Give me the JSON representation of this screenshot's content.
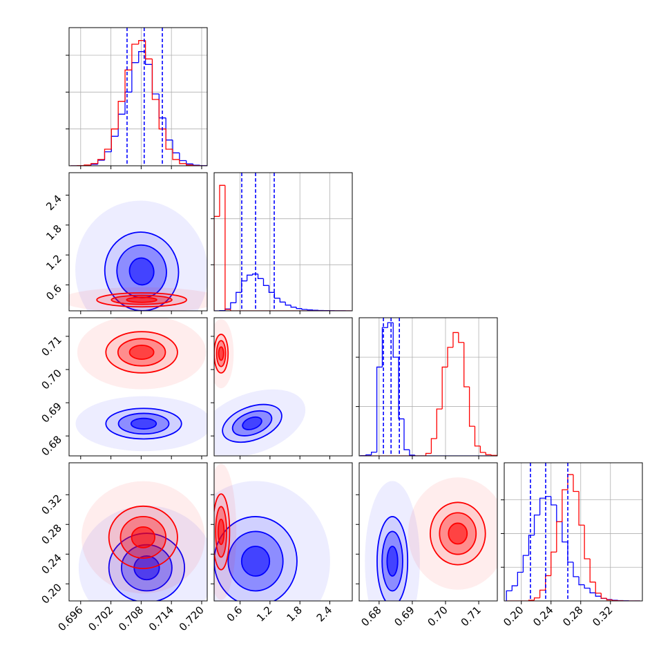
{
  "chart_data": {
    "type": "corner",
    "params": [
      {
        "lim": [
          0.6937,
          0.7211
        ],
        "ticks": [
          0.696,
          0.702,
          0.708,
          0.714,
          {
            "value": 0.72,
            "label": "0.720"
          }
        ]
      },
      {
        "lim": [
          0.08,
          2.85
        ],
        "ticks": [
          0.6,
          1.2,
          1.8,
          2.4
        ]
      },
      {
        "lim": [
          0.674,
          0.7156
        ],
        "ticks": [
          0.68,
          0.69,
          {
            "value": 0.7,
            "label": "0.70"
          },
          0.71
        ]
      },
      {
        "lim": [
          0.177,
          0.363
        ],
        "ticks": [
          {
            "value": 0.2,
            "label": "0.20"
          },
          0.24,
          0.28,
          0.32
        ]
      }
    ],
    "histograms": [
      {
        "bins": [
          0.694,
          0.69535,
          0.6967,
          0.69805,
          0.6994,
          0.70075,
          0.7021,
          0.70345,
          0.7048,
          0.70615,
          0.7075,
          0.70885,
          0.7102,
          0.71155,
          0.7129,
          0.71425,
          0.7156,
          0.71695,
          0.7183,
          0.71965,
          0.721
        ],
        "ylim": [
          0,
          3750
        ],
        "yticks": [
          1000,
          2000,
          3000
        ],
        "grid": true,
        "series": [
          {
            "color": "#0000ff",
            "values": [
              0,
              0,
              10,
              40,
              150,
              380,
              800,
              1400,
              2000,
              2800,
              3100,
              2750,
              1950,
              1300,
              700,
              350,
              140,
              50,
              15,
              5
            ]
          },
          {
            "color": "#ff0000",
            "values": [
              0,
              5,
              20,
              60,
              170,
              450,
              1000,
              1750,
              2600,
              3300,
              3400,
              2900,
              1800,
              1000,
              450,
              170,
              60,
              20,
              5,
              0
            ]
          }
        ],
        "quantiles": [
          0.7052,
          0.7086,
          0.7122
        ],
        "quantile_color": "#0000ff"
      },
      {
        "bins": [
          0.08,
          0.19,
          0.3,
          0.41,
          0.52,
          0.63,
          0.74,
          0.85,
          0.96,
          1.07,
          1.18,
          1.29,
          1.4,
          1.51,
          1.62,
          1.73,
          1.84,
          1.95,
          2.06,
          2.17,
          2.28,
          2.39,
          2.5,
          2.61,
          2.72,
          2.83
        ],
        "ylim": [
          0,
          6000
        ],
        "yticks": [
          2000,
          4000
        ],
        "grid": true,
        "series": [
          {
            "color": "#0000ff",
            "values": [
              0,
              10,
              80,
              350,
              800,
              1300,
              1550,
              1600,
              1400,
              1100,
              800,
              550,
              380,
              250,
              160,
              100,
              60,
              40,
              25,
              15,
              10,
              5,
              3,
              2,
              0
            ]
          },
          {
            "color": "#ff0000",
            "values": [
              4100,
              5450,
              60,
              0,
              0,
              0,
              0,
              0,
              0,
              0,
              0,
              0,
              0,
              0,
              0,
              0,
              0,
              0,
              0,
              0,
              0,
              0,
              0,
              0,
              0
            ]
          }
        ],
        "quantiles": [
          0.634,
          0.911,
          1.285
        ],
        "quantile_color": "#0000ff"
      },
      {
        "bins": [
          0.6744,
          0.67604,
          0.67768,
          0.67932,
          0.68096,
          0.6826,
          0.68424,
          0.68588,
          0.68752,
          0.68916,
          0.6908,
          0.69244,
          0.69408,
          0.69572,
          0.69736,
          0.699,
          0.70064,
          0.70228,
          0.70392,
          0.70556,
          0.7072,
          0.70884,
          0.71048,
          0.71212,
          0.71376,
          0.7154
        ],
        "ylim": [
          0,
          5600
        ],
        "yticks": [
          2000,
          4000
        ],
        "grid": true,
        "series": [
          {
            "color": "#0000ff",
            "values": [
              10,
              40,
              150,
              3600,
              5200,
              5400,
              4000,
              1500,
              250,
              30,
              0,
              0,
              0,
              0,
              0,
              0,
              0,
              0,
              0,
              0,
              0,
              0,
              0,
              0,
              0
            ]
          },
          {
            "color": "#ff0000",
            "values": [
              0,
              0,
              0,
              0,
              0,
              0,
              0,
              0,
              0,
              0,
              0,
              0,
              100,
              700,
              1900,
              3600,
              4400,
              5000,
              4600,
              2800,
              1200,
              400,
              140,
              50,
              20
            ]
          }
        ],
        "quantiles": [
          0.6813,
          0.6836,
          0.6861
        ],
        "quantile_color": "#0000ff"
      },
      {
        "bins": [
          0.18,
          0.1875,
          0.195,
          0.2025,
          0.21,
          0.2175,
          0.225,
          0.2325,
          0.24,
          0.2475,
          0.255,
          0.2625,
          0.27,
          0.2775,
          0.285,
          0.2925,
          0.3,
          0.3075,
          0.315,
          0.3225,
          0.33,
          0.3375,
          0.345,
          0.3525,
          0.36
        ],
        "ylim": [
          0,
          4100
        ],
        "yticks": [
          1000,
          2000,
          3000
        ],
        "grid": true,
        "series": [
          {
            "color": "#0000ff",
            "values": [
              300,
              450,
              850,
              1350,
              1950,
              2550,
              3050,
              3100,
              2850,
              2350,
              1750,
              1150,
              720,
              480,
              380,
              240,
              140,
              75,
              40,
              20,
              10,
              5,
              0,
              0
            ]
          },
          {
            "color": "#ff0000",
            "values": [
              0,
              0,
              0,
              0,
              20,
              90,
              320,
              750,
              1450,
              2350,
              3300,
              3750,
              3250,
              2250,
              1250,
              560,
              230,
              80,
              30,
              10,
              5,
              0,
              0,
              0
            ]
          }
        ],
        "quantiles": [
          0.2123,
          0.2328,
          0.2626
        ],
        "quantile_color": "#0000ff"
      }
    ],
    "contours": [
      {
        "series": [
          {
            "color": "#0000ff",
            "center": [
              0.7081,
              0.87
            ],
            "radii": [
              [
                0.0073,
                0.79
              ],
              [
                0.0049,
                0.53
              ],
              [
                0.0024,
                0.27
              ]
            ],
            "rotation": -10
          },
          {
            "color": "#ff0000",
            "center": [
              0.7081,
              0.3
            ],
            "radii": [
              [
                0.0089,
                0.14
              ],
              [
                0.006,
                0.09
              ],
              [
                0.003,
                0.05
              ]
            ],
            "rotation": 0
          }
        ]
      },
      {
        "series": [
          {
            "color": "#0000ff",
            "center": [
              0.7085,
              0.6837
            ],
            "radii": [
              [
                0.0075,
                0.0046
              ],
              [
                0.005,
                0.0031
              ],
              [
                0.0025,
                0.0016
              ]
            ],
            "rotation": 0
          },
          {
            "color": "#ff0000",
            "center": [
              0.7081,
              0.7052
            ],
            "radii": [
              [
                0.0071,
                0.0062
              ],
              [
                0.0047,
                0.0041
              ],
              [
                0.0024,
                0.0021
              ]
            ],
            "rotation": 0
          }
        ]
      },
      {
        "series": [
          {
            "color": "#0000ff",
            "center": [
              0.842,
              0.6838
            ],
            "radii": [
              [
                0.62,
                0.005
              ],
              [
                0.41,
                0.0033
              ],
              [
                0.2,
                0.0017
              ]
            ],
            "rotation": -20
          },
          {
            "color": "#ff0000",
            "center": [
              0.22,
              0.7048
            ],
            "radii": [
              [
                0.14,
                0.0058
              ],
              [
                0.09,
                0.0039
              ],
              [
                0.05,
                0.002
              ]
            ],
            "rotation": 0
          }
        ]
      },
      {
        "series": [
          {
            "color": "#0000ff",
            "center": [
              0.7091,
              0.2216
            ],
            "radii": [
              [
                0.0075,
                0.0465
              ],
              [
                0.005,
                0.031
              ],
              [
                0.0025,
                0.016
              ]
            ],
            "rotation": 0
          },
          {
            "color": "#ff0000",
            "center": [
              0.7084,
              0.2626
            ],
            "radii": [
              [
                0.0068,
                0.042
              ],
              [
                0.0045,
                0.028
              ],
              [
                0.0023,
                0.014
              ]
            ],
            "rotation": 0
          }
        ]
      },
      {
        "series": [
          {
            "color": "#0000ff",
            "center": [
              0.911,
              0.2305
            ],
            "radii": [
              [
                0.83,
                0.06
              ],
              [
                0.55,
                0.04
              ],
              [
                0.28,
                0.02
              ]
            ],
            "rotation": 0
          },
          {
            "color": "#ff0000",
            "center": [
              0.22,
              0.27
            ],
            "radii": [
              [
                0.17,
                0.051
              ],
              [
                0.11,
                0.034
              ],
              [
                0.06,
                0.017
              ]
            ],
            "rotation": 0
          }
        ]
      },
      {
        "series": [
          {
            "color": "#0000ff",
            "center": [
              0.684,
              0.2305
            ],
            "radii": [
              [
                0.0046,
                0.06
              ],
              [
                0.0031,
                0.04
              ],
              [
                0.0016,
                0.02
              ]
            ],
            "rotation": 0
          },
          {
            "color": "#ff0000",
            "center": [
              0.7037,
              0.2677
            ],
            "radii": [
              [
                0.0083,
                0.042
              ],
              [
                0.0055,
                0.028
              ],
              [
                0.0028,
                0.014
              ]
            ],
            "rotation": 0
          }
        ]
      }
    ]
  }
}
